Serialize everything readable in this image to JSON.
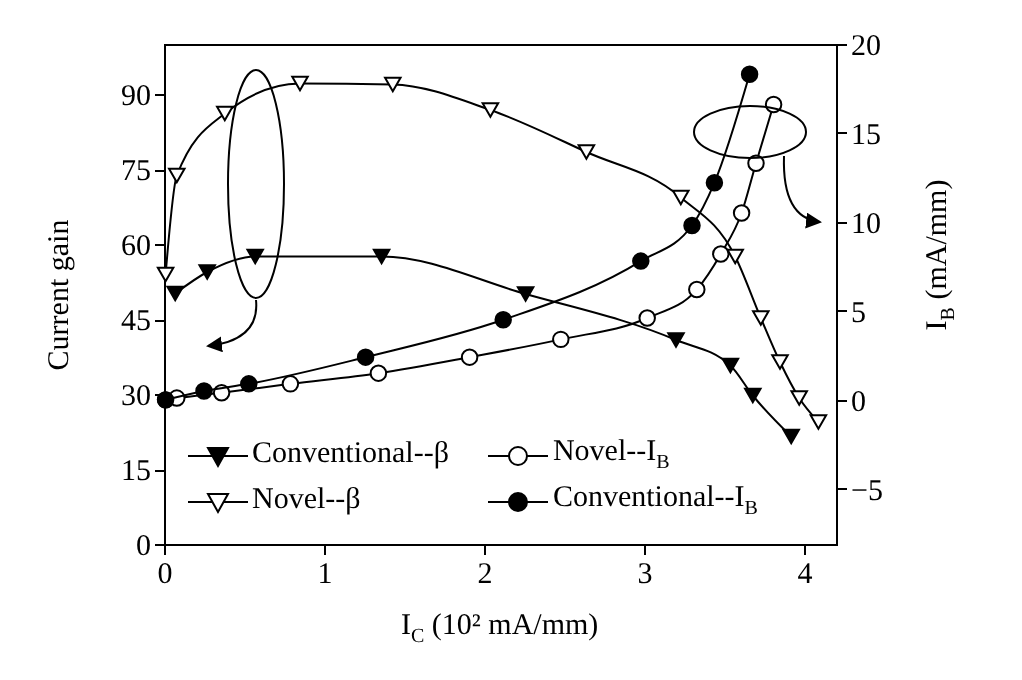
{
  "chart_data": {
    "type": "line",
    "xlabel": "I$_{C}$ (10² mA/mm)",
    "ylabel": "Current gain",
    "y2label": "I$_{B}$ (mA/mm)",
    "xlim": [
      0,
      4.2
    ],
    "xticks": [
      0,
      1,
      2,
      3,
      4
    ],
    "ylim": [
      0,
      100
    ],
    "yticks": [
      0,
      15,
      30,
      45,
      60,
      75,
      90
    ],
    "y2lim": [
      -8.1,
      20
    ],
    "y2ticks": [
      -5,
      0,
      5,
      10,
      15,
      20
    ],
    "legend": "bottom left",
    "grid": false,
    "series": [
      {
        "name": "Conventional--β",
        "color": "#000000",
        "marker": "triangle",
        "x": [
          0.07,
          0.27,
          0.57,
          1.36,
          2.26,
          3.2,
          3.54,
          3.68,
          3.92
        ],
        "values": [
          50.1,
          54.4,
          57.5,
          57.5,
          50.0,
          40.8,
          35.7,
          29.7,
          21.5
        ]
      },
      {
        "name": "Novel--I$_{B}$",
        "color": "#ffffff",
        "marker": "circle",
        "axis": "y2",
        "x": [
          0.01,
          0.08,
          0.36,
          0.79,
          1.34,
          1.91,
          2.48,
          3.02,
          3.33,
          3.48,
          3.61,
          3.7,
          3.81
        ],
        "values": [
          0,
          0.1,
          0.4,
          0.9,
          1.5,
          2.4,
          3.4,
          4.6,
          6.2,
          8.2,
          10.5,
          13.3,
          16.6
        ]
      },
      {
        "name": "Novel--β",
        "color": "#ffffff",
        "marker": "triangle",
        "x": [
          0.01,
          0.08,
          0.38,
          0.85,
          1.43,
          2.04,
          2.64,
          3.23,
          3.57,
          3.73,
          3.85,
          3.97,
          4.09
        ],
        "values": [
          53.9,
          73.7,
          86.1,
          92.1,
          91.9,
          86.8,
          78.4,
          69.3,
          57.5,
          45.2,
          36.4,
          29.2,
          24.4
        ]
      },
      {
        "name": "Conventional--I$_{B}$",
        "color": "#000000",
        "marker": "circle",
        "axis": "y2",
        "x": [
          0.01,
          0.25,
          0.53,
          1.26,
          2.12,
          2.98,
          3.3,
          3.44,
          3.66
        ],
        "values": [
          0,
          0.5,
          0.9,
          2.4,
          4.5,
          7.8,
          9.8,
          12.2,
          18.3
        ]
      }
    ]
  }
}
